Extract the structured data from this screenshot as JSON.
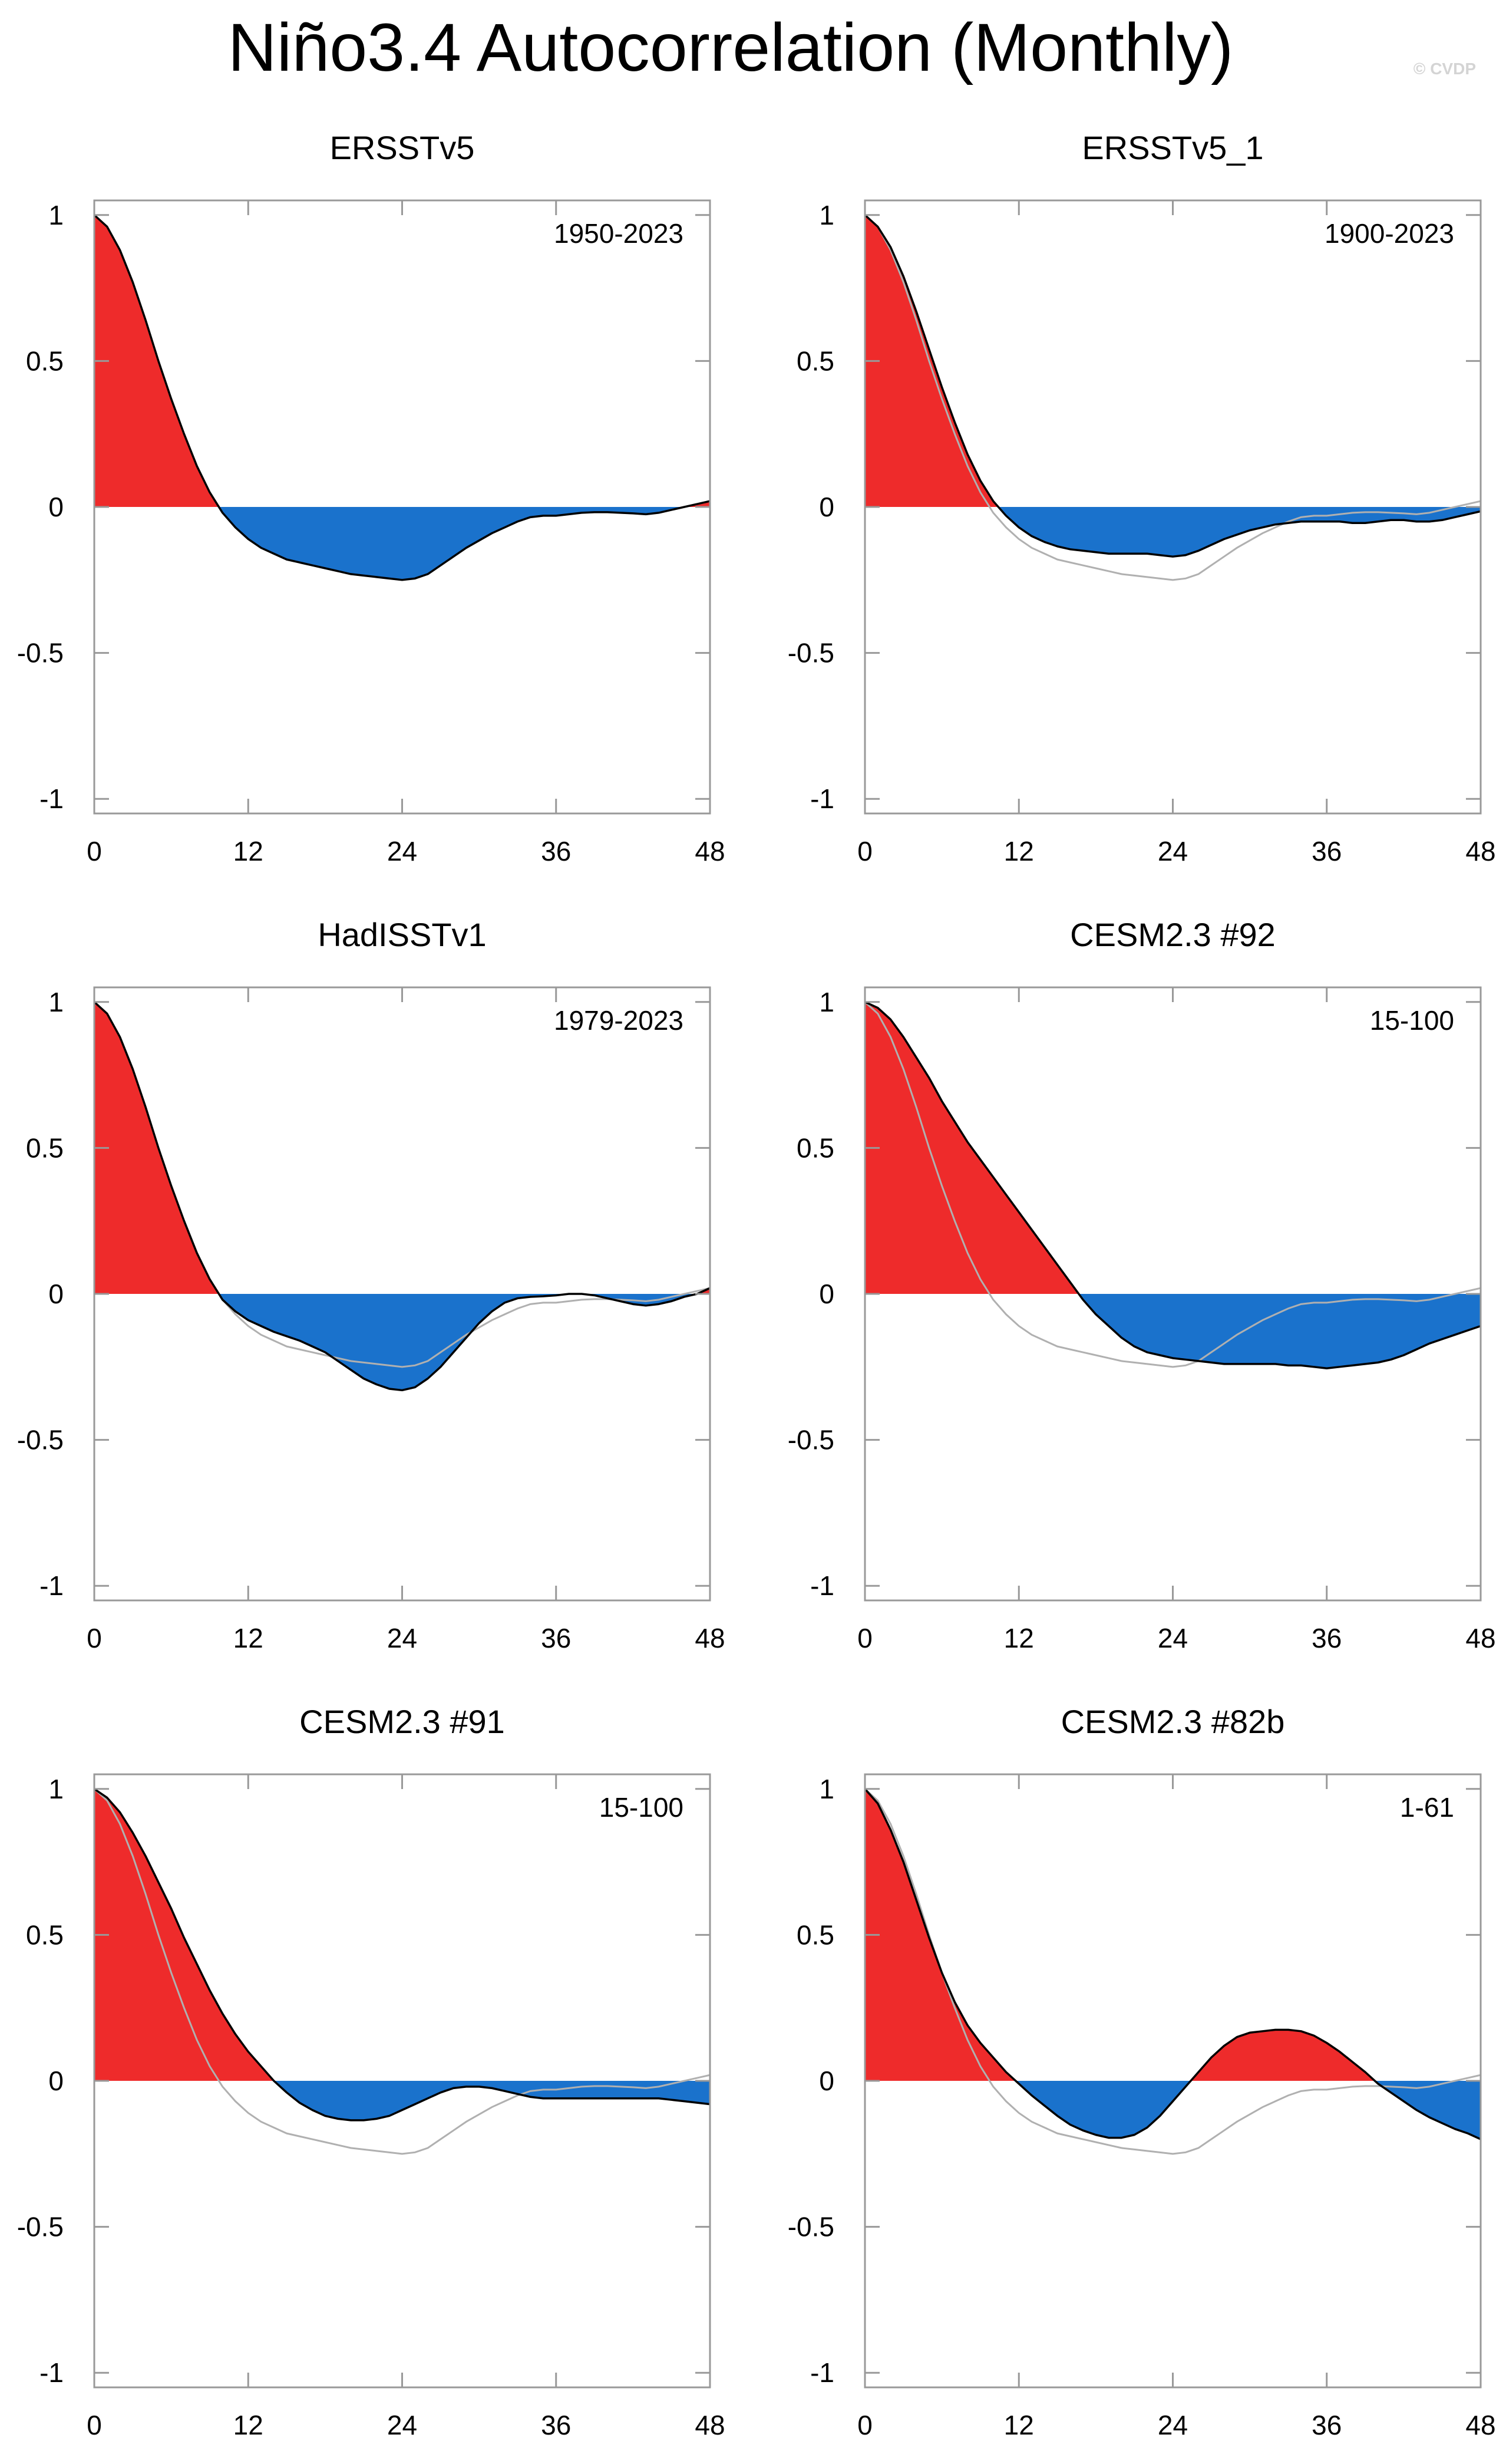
{
  "title": "Niño3.4 Autocorrelation (Monthly)",
  "credit": "© CVDP",
  "colors": {
    "positive": "#ee2b2b",
    "negative": "#1a72cc",
    "panel_line": "#000000",
    "reference_line": "#b0b0b0",
    "frame": "#999999"
  },
  "chart_data": [
    {
      "type": "area",
      "title": "ERSSTv5",
      "period": "1950-2023",
      "xlabel": "",
      "ylabel": "",
      "xlim": [
        0,
        48
      ],
      "ylim": [
        -1.05,
        1.05
      ],
      "xticks": [
        0,
        12,
        24,
        36,
        48
      ],
      "xtick_labels": [
        "0",
        "12",
        "24",
        "36",
        "48"
      ],
      "yticks": [
        1,
        0.5,
        0,
        -0.5,
        -1
      ],
      "ytick_labels": [
        "1",
        "0.5",
        "0",
        "-0.5",
        "-1"
      ],
      "x": [
        0,
        1,
        2,
        3,
        4,
        5,
        6,
        7,
        8,
        9,
        10,
        11,
        12,
        13,
        14,
        15,
        16,
        17,
        18,
        19,
        20,
        21,
        22,
        23,
        24,
        25,
        26,
        27,
        28,
        29,
        30,
        31,
        32,
        33,
        34,
        35,
        36,
        37,
        38,
        39,
        40,
        41,
        42,
        43,
        44,
        45,
        46,
        47,
        48
      ],
      "values": [
        1.0,
        0.96,
        0.88,
        0.77,
        0.64,
        0.5,
        0.37,
        0.25,
        0.14,
        0.05,
        -0.02,
        -0.07,
        -0.11,
        -0.14,
        -0.16,
        -0.18,
        -0.19,
        -0.2,
        -0.21,
        -0.22,
        -0.23,
        -0.235,
        -0.24,
        -0.245,
        -0.25,
        -0.245,
        -0.23,
        -0.2,
        -0.17,
        -0.14,
        -0.115,
        -0.09,
        -0.07,
        -0.05,
        -0.035,
        -0.03,
        -0.03,
        -0.025,
        -0.02,
        -0.018,
        -0.018,
        -0.02,
        -0.022,
        -0.025,
        -0.02,
        -0.01,
        0.0,
        0.01,
        0.02
      ],
      "reference": [
        1.0,
        0.96,
        0.88,
        0.77,
        0.64,
        0.5,
        0.37,
        0.25,
        0.14,
        0.05,
        -0.02,
        -0.07,
        -0.11,
        -0.14,
        -0.16,
        -0.18,
        -0.19,
        -0.2,
        -0.21,
        -0.22,
        -0.23,
        -0.235,
        -0.24,
        -0.245,
        -0.25,
        -0.245,
        -0.23,
        -0.2,
        -0.17,
        -0.14,
        -0.115,
        -0.09,
        -0.07,
        -0.05,
        -0.035,
        -0.03,
        -0.03,
        -0.025,
        -0.02,
        -0.018,
        -0.018,
        -0.02,
        -0.022,
        -0.025,
        -0.02,
        -0.01,
        0.0,
        0.01,
        0.02
      ]
    },
    {
      "type": "area",
      "title": "ERSSTv5_1",
      "period": "1900-2023",
      "xlabel": "",
      "ylabel": "",
      "xlim": [
        0,
        48
      ],
      "ylim": [
        -1.05,
        1.05
      ],
      "xticks": [
        0,
        12,
        24,
        36,
        48
      ],
      "xtick_labels": [
        "0",
        "12",
        "24",
        "36",
        "48"
      ],
      "yticks": [
        1,
        0.5,
        0,
        -0.5,
        -1
      ],
      "ytick_labels": [
        "1",
        "0.5",
        "0",
        "-0.5",
        "-1"
      ],
      "x": [
        0,
        1,
        2,
        3,
        4,
        5,
        6,
        7,
        8,
        9,
        10,
        11,
        12,
        13,
        14,
        15,
        16,
        17,
        18,
        19,
        20,
        21,
        22,
        23,
        24,
        25,
        26,
        27,
        28,
        29,
        30,
        31,
        32,
        33,
        34,
        35,
        36,
        37,
        38,
        39,
        40,
        41,
        42,
        43,
        44,
        45,
        46,
        47,
        48
      ],
      "values": [
        1.0,
        0.96,
        0.89,
        0.79,
        0.67,
        0.54,
        0.41,
        0.29,
        0.18,
        0.09,
        0.02,
        -0.03,
        -0.07,
        -0.1,
        -0.12,
        -0.135,
        -0.145,
        -0.15,
        -0.155,
        -0.16,
        -0.16,
        -0.16,
        -0.16,
        -0.165,
        -0.17,
        -0.165,
        -0.15,
        -0.13,
        -0.11,
        -0.095,
        -0.08,
        -0.07,
        -0.06,
        -0.055,
        -0.05,
        -0.05,
        -0.05,
        -0.05,
        -0.055,
        -0.055,
        -0.05,
        -0.045,
        -0.045,
        -0.05,
        -0.05,
        -0.045,
        -0.035,
        -0.025,
        -0.015
      ],
      "reference": [
        1.0,
        0.96,
        0.88,
        0.77,
        0.64,
        0.5,
        0.37,
        0.25,
        0.14,
        0.05,
        -0.02,
        -0.07,
        -0.11,
        -0.14,
        -0.16,
        -0.18,
        -0.19,
        -0.2,
        -0.21,
        -0.22,
        -0.23,
        -0.235,
        -0.24,
        -0.245,
        -0.25,
        -0.245,
        -0.23,
        -0.2,
        -0.17,
        -0.14,
        -0.115,
        -0.09,
        -0.07,
        -0.05,
        -0.035,
        -0.03,
        -0.03,
        -0.025,
        -0.02,
        -0.018,
        -0.018,
        -0.02,
        -0.022,
        -0.025,
        -0.02,
        -0.01,
        0.0,
        0.01,
        0.02
      ]
    },
    {
      "type": "area",
      "title": "HadISSTv1",
      "period": "1979-2023",
      "xlabel": "",
      "ylabel": "",
      "xlim": [
        0,
        48
      ],
      "ylim": [
        -1.05,
        1.05
      ],
      "xticks": [
        0,
        12,
        24,
        36,
        48
      ],
      "xtick_labels": [
        "0",
        "12",
        "24",
        "36",
        "48"
      ],
      "yticks": [
        1,
        0.5,
        0,
        -0.5,
        -1
      ],
      "ytick_labels": [
        "1",
        "0.5",
        "0",
        "-0.5",
        "-1"
      ],
      "x": [
        0,
        1,
        2,
        3,
        4,
        5,
        6,
        7,
        8,
        9,
        10,
        11,
        12,
        13,
        14,
        15,
        16,
        17,
        18,
        19,
        20,
        21,
        22,
        23,
        24,
        25,
        26,
        27,
        28,
        29,
        30,
        31,
        32,
        33,
        34,
        35,
        36,
        37,
        38,
        39,
        40,
        41,
        42,
        43,
        44,
        45,
        46,
        47,
        48
      ],
      "values": [
        1.0,
        0.96,
        0.88,
        0.77,
        0.64,
        0.5,
        0.37,
        0.25,
        0.14,
        0.05,
        -0.02,
        -0.06,
        -0.09,
        -0.11,
        -0.13,
        -0.145,
        -0.16,
        -0.18,
        -0.2,
        -0.23,
        -0.26,
        -0.29,
        -0.31,
        -0.325,
        -0.33,
        -0.32,
        -0.29,
        -0.25,
        -0.2,
        -0.15,
        -0.1,
        -0.06,
        -0.03,
        -0.015,
        -0.01,
        -0.008,
        -0.005,
        0.0,
        0.0,
        -0.005,
        -0.015,
        -0.025,
        -0.035,
        -0.04,
        -0.035,
        -0.025,
        -0.01,
        0.0,
        0.02
      ],
      "reference": [
        1.0,
        0.96,
        0.88,
        0.77,
        0.64,
        0.5,
        0.37,
        0.25,
        0.14,
        0.05,
        -0.02,
        -0.07,
        -0.11,
        -0.14,
        -0.16,
        -0.18,
        -0.19,
        -0.2,
        -0.21,
        -0.22,
        -0.23,
        -0.235,
        -0.24,
        -0.245,
        -0.25,
        -0.245,
        -0.23,
        -0.2,
        -0.17,
        -0.14,
        -0.115,
        -0.09,
        -0.07,
        -0.05,
        -0.035,
        -0.03,
        -0.03,
        -0.025,
        -0.02,
        -0.018,
        -0.018,
        -0.02,
        -0.022,
        -0.025,
        -0.02,
        -0.01,
        0.0,
        0.01,
        0.02
      ]
    },
    {
      "type": "area",
      "title": "CESM2.3 #92",
      "period": "15-100",
      "xlabel": "",
      "ylabel": "",
      "xlim": [
        0,
        48
      ],
      "ylim": [
        -1.05,
        1.05
      ],
      "xticks": [
        0,
        12,
        24,
        36,
        48
      ],
      "xtick_labels": [
        "0",
        "12",
        "24",
        "36",
        "48"
      ],
      "yticks": [
        1,
        0.5,
        0,
        -0.5,
        -1
      ],
      "ytick_labels": [
        "1",
        "0.5",
        "0",
        "-0.5",
        "-1"
      ],
      "x": [
        0,
        1,
        2,
        3,
        4,
        5,
        6,
        7,
        8,
        9,
        10,
        11,
        12,
        13,
        14,
        15,
        16,
        17,
        18,
        19,
        20,
        21,
        22,
        23,
        24,
        25,
        26,
        27,
        28,
        29,
        30,
        31,
        32,
        33,
        34,
        35,
        36,
        37,
        38,
        39,
        40,
        41,
        42,
        43,
        44,
        45,
        46,
        47,
        48
      ],
      "values": [
        1.0,
        0.98,
        0.94,
        0.88,
        0.81,
        0.74,
        0.66,
        0.59,
        0.52,
        0.46,
        0.4,
        0.34,
        0.28,
        0.22,
        0.16,
        0.1,
        0.04,
        -0.02,
        -0.07,
        -0.11,
        -0.15,
        -0.18,
        -0.2,
        -0.21,
        -0.22,
        -0.225,
        -0.23,
        -0.235,
        -0.24,
        -0.24,
        -0.24,
        -0.24,
        -0.24,
        -0.245,
        -0.245,
        -0.25,
        -0.255,
        -0.25,
        -0.245,
        -0.24,
        -0.235,
        -0.225,
        -0.21,
        -0.19,
        -0.17,
        -0.155,
        -0.14,
        -0.125,
        -0.11
      ],
      "reference": [
        1.0,
        0.96,
        0.88,
        0.77,
        0.64,
        0.5,
        0.37,
        0.25,
        0.14,
        0.05,
        -0.02,
        -0.07,
        -0.11,
        -0.14,
        -0.16,
        -0.18,
        -0.19,
        -0.2,
        -0.21,
        -0.22,
        -0.23,
        -0.235,
        -0.24,
        -0.245,
        -0.25,
        -0.245,
        -0.23,
        -0.2,
        -0.17,
        -0.14,
        -0.115,
        -0.09,
        -0.07,
        -0.05,
        -0.035,
        -0.03,
        -0.03,
        -0.025,
        -0.02,
        -0.018,
        -0.018,
        -0.02,
        -0.022,
        -0.025,
        -0.02,
        -0.01,
        0.0,
        0.01,
        0.02
      ]
    },
    {
      "type": "area",
      "title": "CESM2.3 #91",
      "period": "15-100",
      "xlabel": "",
      "ylabel": "",
      "xlim": [
        0,
        48
      ],
      "ylim": [
        -1.05,
        1.05
      ],
      "xticks": [
        0,
        12,
        24,
        36,
        48
      ],
      "xtick_labels": [
        "0",
        "12",
        "24",
        "36",
        "48"
      ],
      "yticks": [
        1,
        0.5,
        0,
        -0.5,
        -1
      ],
      "ytick_labels": [
        "1",
        "0.5",
        "0",
        "-0.5",
        "-1"
      ],
      "x": [
        0,
        1,
        2,
        3,
        4,
        5,
        6,
        7,
        8,
        9,
        10,
        11,
        12,
        13,
        14,
        15,
        16,
        17,
        18,
        19,
        20,
        21,
        22,
        23,
        24,
        25,
        26,
        27,
        28,
        29,
        30,
        31,
        32,
        33,
        34,
        35,
        36,
        37,
        38,
        39,
        40,
        41,
        42,
        43,
        44,
        45,
        46,
        47,
        48
      ],
      "values": [
        1.0,
        0.97,
        0.92,
        0.85,
        0.77,
        0.68,
        0.59,
        0.49,
        0.4,
        0.31,
        0.23,
        0.16,
        0.1,
        0.05,
        0.0,
        -0.04,
        -0.075,
        -0.1,
        -0.12,
        -0.13,
        -0.135,
        -0.135,
        -0.13,
        -0.12,
        -0.1,
        -0.08,
        -0.06,
        -0.04,
        -0.025,
        -0.02,
        -0.02,
        -0.025,
        -0.035,
        -0.045,
        -0.055,
        -0.06,
        -0.06,
        -0.06,
        -0.06,
        -0.06,
        -0.06,
        -0.06,
        -0.06,
        -0.06,
        -0.06,
        -0.065,
        -0.07,
        -0.075,
        -0.08
      ],
      "reference": [
        1.0,
        0.96,
        0.88,
        0.77,
        0.64,
        0.5,
        0.37,
        0.25,
        0.14,
        0.05,
        -0.02,
        -0.07,
        -0.11,
        -0.14,
        -0.16,
        -0.18,
        -0.19,
        -0.2,
        -0.21,
        -0.22,
        -0.23,
        -0.235,
        -0.24,
        -0.245,
        -0.25,
        -0.245,
        -0.23,
        -0.2,
        -0.17,
        -0.14,
        -0.115,
        -0.09,
        -0.07,
        -0.05,
        -0.035,
        -0.03,
        -0.03,
        -0.025,
        -0.02,
        -0.018,
        -0.018,
        -0.02,
        -0.022,
        -0.025,
        -0.02,
        -0.01,
        0.0,
        0.01,
        0.02
      ]
    },
    {
      "type": "area",
      "title": "CESM2.3 #82b",
      "period": "1-61",
      "xlabel": "",
      "ylabel": "",
      "xlim": [
        0,
        48
      ],
      "ylim": [
        -1.05,
        1.05
      ],
      "xticks": [
        0,
        12,
        24,
        36,
        48
      ],
      "xtick_labels": [
        "0",
        "12",
        "24",
        "36",
        "48"
      ],
      "yticks": [
        1,
        0.5,
        0,
        -0.5,
        -1
      ],
      "ytick_labels": [
        "1",
        "0.5",
        "0",
        "-0.5",
        "-1"
      ],
      "x": [
        0,
        1,
        2,
        3,
        4,
        5,
        6,
        7,
        8,
        9,
        10,
        11,
        12,
        13,
        14,
        15,
        16,
        17,
        18,
        19,
        20,
        21,
        22,
        23,
        24,
        25,
        26,
        27,
        28,
        29,
        30,
        31,
        32,
        33,
        34,
        35,
        36,
        37,
        38,
        39,
        40,
        41,
        42,
        43,
        44,
        45,
        46,
        47,
        48
      ],
      "values": [
        1.0,
        0.95,
        0.86,
        0.75,
        0.62,
        0.49,
        0.37,
        0.27,
        0.19,
        0.13,
        0.08,
        0.03,
        -0.01,
        -0.05,
        -0.085,
        -0.12,
        -0.15,
        -0.17,
        -0.185,
        -0.195,
        -0.195,
        -0.185,
        -0.16,
        -0.12,
        -0.07,
        -0.02,
        0.03,
        0.08,
        0.12,
        0.15,
        0.165,
        0.17,
        0.175,
        0.175,
        0.17,
        0.155,
        0.13,
        0.1,
        0.065,
        0.03,
        -0.01,
        -0.04,
        -0.07,
        -0.1,
        -0.125,
        -0.145,
        -0.165,
        -0.18,
        -0.2
      ],
      "reference": [
        1.0,
        0.96,
        0.88,
        0.77,
        0.64,
        0.5,
        0.37,
        0.25,
        0.14,
        0.05,
        -0.02,
        -0.07,
        -0.11,
        -0.14,
        -0.16,
        -0.18,
        -0.19,
        -0.2,
        -0.21,
        -0.22,
        -0.23,
        -0.235,
        -0.24,
        -0.245,
        -0.25,
        -0.245,
        -0.23,
        -0.2,
        -0.17,
        -0.14,
        -0.115,
        -0.09,
        -0.07,
        -0.05,
        -0.035,
        -0.03,
        -0.03,
        -0.025,
        -0.02,
        -0.018,
        -0.018,
        -0.02,
        -0.022,
        -0.025,
        -0.02,
        -0.01,
        0.0,
        0.01,
        0.02
      ]
    }
  ]
}
